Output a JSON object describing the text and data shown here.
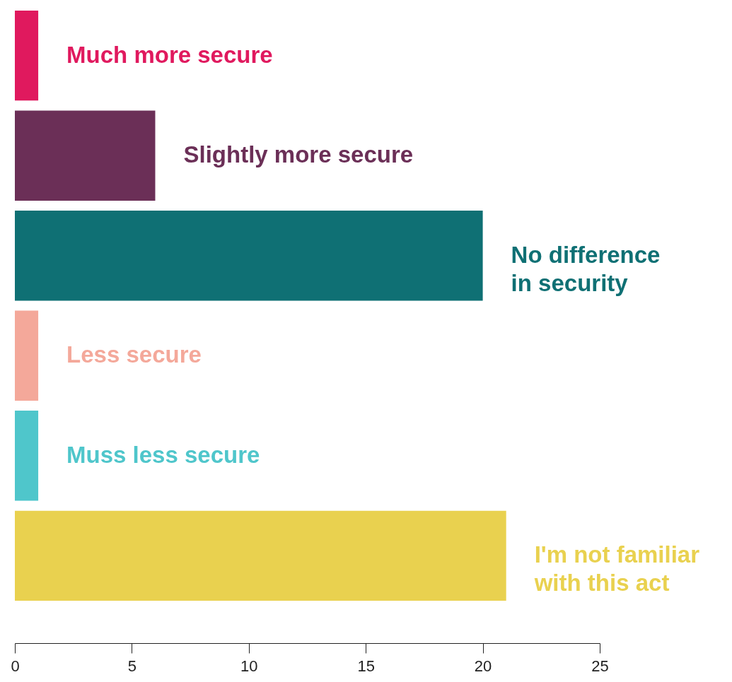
{
  "chart_data": {
    "type": "bar",
    "orientation": "horizontal",
    "categories": [
      "Much more secure",
      "Slightly more secure",
      "No difference in security",
      "Less secure",
      "Muss less secure",
      "I'm not familiar with this act"
    ],
    "values": [
      1,
      6,
      20,
      1,
      1,
      21
    ],
    "colors": [
      "#e0195e",
      "#6b2f57",
      "#0f7074",
      "#f4a89a",
      "#4fc6cb",
      "#e9d14f"
    ],
    "xlim": [
      0,
      25
    ],
    "xticks": [
      0,
      5,
      10,
      15,
      20,
      25
    ],
    "grid": false,
    "tick_labels": "x"
  }
}
